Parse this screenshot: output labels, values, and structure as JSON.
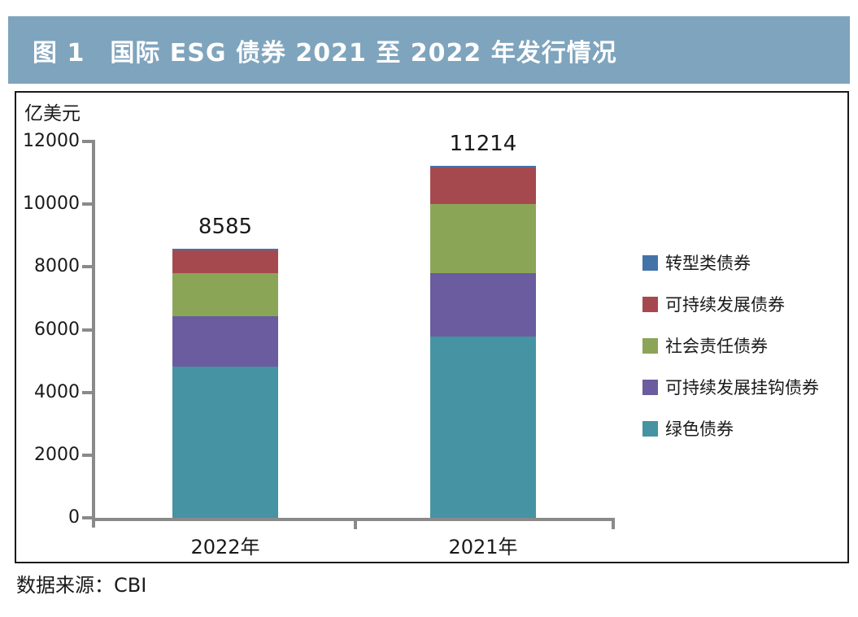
{
  "banner": {
    "title": "图 1　国际 ESG 债券 2021 至 2022 年发行情况",
    "bg_color": "#7fa4bd",
    "text_color": "#ffffff"
  },
  "source_note": "数据来源：CBI",
  "chart_data": {
    "type": "bar",
    "stacked": true,
    "title": "国际 ESG 债券 2021 至 2022 年发行情况",
    "unit_label": "亿美元",
    "xlabel": "",
    "ylabel": "亿美元",
    "categories": [
      "2022年",
      "2021年"
    ],
    "series": [
      {
        "name": "绿色债券",
        "color": "#4593a3",
        "values": [
          4809,
          5770
        ]
      },
      {
        "name": "可持续发展挂钩债券",
        "color": "#6a5c9e",
        "values": [
          1620,
          2028
        ]
      },
      {
        "name": "社会责任债券",
        "color": "#8ba557",
        "values": [
          1360,
          2210
        ]
      },
      {
        "name": "可持续发展债券",
        "color": "#a6494e",
        "values": [
          745,
          1155
        ]
      },
      {
        "name": "转型类债券",
        "color": "#4573a7",
        "values": [
          51,
          51
        ]
      }
    ],
    "totals": [
      8585,
      11214
    ],
    "total_labels": [
      "8585",
      "11214"
    ],
    "yticks": [
      0,
      2000,
      4000,
      6000,
      8000,
      10000,
      12000
    ],
    "ylim": [
      0,
      12000
    ],
    "grid": false,
    "legend_position": "right",
    "legend_order": [
      "转型类债券",
      "可持续发展债券",
      "社会责任债券",
      "可持续发展挂钩债券",
      "绿色债券"
    ],
    "axis_color": "#8a8a8a"
  }
}
